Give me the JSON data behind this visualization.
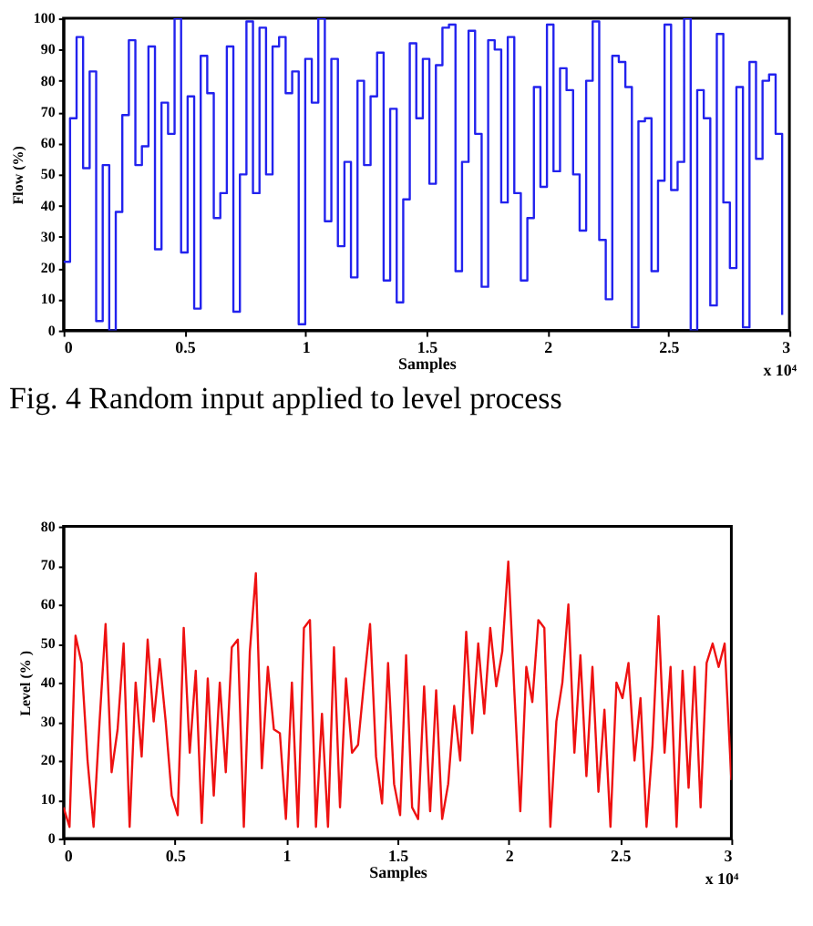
{
  "chart_data": [
    {
      "type": "step",
      "xlabel": "Samples",
      "ylabel": "Flow (%)",
      "annotations": [
        "x 10⁴",
        "Fig. 4 Random input applied to  level process"
      ],
      "x": [
        0,
        0.027,
        0.054,
        0.081,
        0.108,
        0.135,
        0.162,
        0.189,
        0.216,
        0.243,
        0.27,
        0.297,
        0.324,
        0.351,
        0.378,
        0.405,
        0.432,
        0.459,
        0.486,
        0.513,
        0.54,
        0.567,
        0.594,
        0.621,
        0.648,
        0.675,
        0.702,
        0.729,
        0.756,
        0.783,
        0.81,
        0.837,
        0.864,
        0.891,
        0.918,
        0.945,
        0.972,
        0.999,
        1.026,
        1.053,
        1.08,
        1.107,
        1.134,
        1.161,
        1.188,
        1.215,
        1.242,
        1.269,
        1.296,
        1.323,
        1.35,
        1.377,
        1.404,
        1.431,
        1.458,
        1.485,
        1.512,
        1.539,
        1.566,
        1.593,
        1.62,
        1.647,
        1.674,
        1.701,
        1.728,
        1.755,
        1.782,
        1.809,
        1.836,
        1.863,
        1.89,
        1.917,
        1.944,
        1.971,
        1.998,
        2.025,
        2.052,
        2.079,
        2.106,
        2.133,
        2.16,
        2.187,
        2.214,
        2.241,
        2.268,
        2.295,
        2.322,
        2.349,
        2.376,
        2.403,
        2.43,
        2.457,
        2.484,
        2.511,
        2.538,
        2.565,
        2.592,
        2.619,
        2.646,
        2.673,
        2.7,
        2.727,
        2.754,
        2.781,
        2.808,
        2.835,
        2.862,
        2.889,
        2.916,
        2.943,
        2.97
      ],
      "series": [
        {
          "color": "#2222ee",
          "values": [
            22,
            68,
            94,
            52,
            83,
            3,
            53,
            0,
            38,
            69,
            93,
            53,
            59,
            91,
            26,
            73,
            63,
            100,
            25,
            75,
            7,
            88,
            76,
            36,
            44,
            91,
            6,
            50,
            99,
            44,
            97,
            50,
            91,
            94,
            76,
            83,
            2,
            87,
            73,
            100,
            35,
            87,
            27,
            54,
            17,
            80,
            53,
            75,
            89,
            16,
            71,
            9,
            42,
            92,
            68,
            87,
            47,
            85,
            97,
            98,
            19,
            54,
            96,
            63,
            14,
            93,
            90,
            41,
            94,
            44,
            16,
            36,
            78,
            46,
            98,
            51,
            84,
            77,
            50,
            32,
            80,
            99,
            29,
            10,
            88,
            86,
            78,
            1,
            67,
            68,
            19,
            48,
            98,
            45,
            54,
            100,
            0,
            77,
            68,
            8,
            95,
            41,
            20,
            78,
            1,
            86,
            55,
            80,
            82,
            63,
            5
          ]
        }
      ],
      "xlim": [
        0,
        3
      ],
      "xticks": [
        0,
        0.5,
        1,
        1.5,
        2,
        2.5,
        3
      ],
      "ylim": [
        0,
        100
      ],
      "yticks": [
        0,
        10,
        20,
        30,
        40,
        50,
        60,
        70,
        80,
        90,
        100
      ]
    },
    {
      "type": "line",
      "xlabel": "Samples",
      "ylabel": "Level (% )",
      "annotations": [
        "x 10⁴"
      ],
      "x": [
        0,
        0.027,
        0.054,
        0.081,
        0.108,
        0.135,
        0.162,
        0.189,
        0.216,
        0.243,
        0.27,
        0.297,
        0.324,
        0.351,
        0.378,
        0.405,
        0.432,
        0.459,
        0.486,
        0.513,
        0.54,
        0.567,
        0.594,
        0.621,
        0.648,
        0.675,
        0.702,
        0.729,
        0.756,
        0.783,
        0.81,
        0.837,
        0.864,
        0.891,
        0.918,
        0.945,
        0.972,
        0.999,
        1.026,
        1.053,
        1.08,
        1.107,
        1.134,
        1.161,
        1.188,
        1.215,
        1.242,
        1.269,
        1.296,
        1.323,
        1.35,
        1.377,
        1.404,
        1.431,
        1.458,
        1.485,
        1.512,
        1.539,
        1.566,
        1.593,
        1.62,
        1.647,
        1.674,
        1.701,
        1.728,
        1.755,
        1.782,
        1.809,
        1.836,
        1.863,
        1.89,
        1.917,
        1.944,
        1.971,
        1.998,
        2.025,
        2.052,
        2.079,
        2.106,
        2.133,
        2.16,
        2.187,
        2.214,
        2.241,
        2.268,
        2.295,
        2.322,
        2.349,
        2.376,
        2.403,
        2.43,
        2.457,
        2.484,
        2.511,
        2.538,
        2.565,
        2.592,
        2.619,
        2.646,
        2.673,
        2.7,
        2.727,
        2.754,
        2.781,
        2.808,
        2.835,
        2.862,
        2.889,
        2.916,
        2.943,
        2.97,
        3
      ],
      "series": [
        {
          "color": "#ee1111",
          "values": [
            8,
            3,
            52,
            45,
            20,
            3,
            30,
            55,
            17,
            28,
            50,
            3,
            40,
            21,
            51,
            30,
            46,
            30,
            11,
            6,
            54,
            22,
            43,
            4,
            41,
            11,
            40,
            17,
            49,
            51,
            3,
            48,
            68,
            18,
            44,
            28,
            27,
            5,
            40,
            3,
            54,
            56,
            3,
            32,
            3,
            49,
            8,
            41,
            22,
            24,
            40,
            55,
            21,
            9,
            45,
            14,
            6,
            47,
            8,
            5,
            39,
            7,
            38,
            5,
            14,
            34,
            20,
            53,
            27,
            50,
            32,
            54,
            39,
            48,
            71,
            38,
            7,
            44,
            35,
            56,
            54,
            3,
            30,
            40,
            60,
            22,
            47,
            16,
            44,
            12,
            33,
            3,
            40,
            36,
            45,
            20,
            36,
            3,
            24,
            57,
            22,
            44,
            3,
            43,
            13,
            44,
            8,
            45,
            50,
            44,
            50,
            15
          ]
        }
      ],
      "xlim": [
        0,
        3
      ],
      "xticks": [
        0,
        0.5,
        1,
        1.5,
        2,
        2.5,
        3
      ],
      "ylim": [
        0,
        80
      ],
      "yticks": [
        0,
        10,
        20,
        30,
        40,
        50,
        60,
        70,
        80
      ]
    }
  ]
}
